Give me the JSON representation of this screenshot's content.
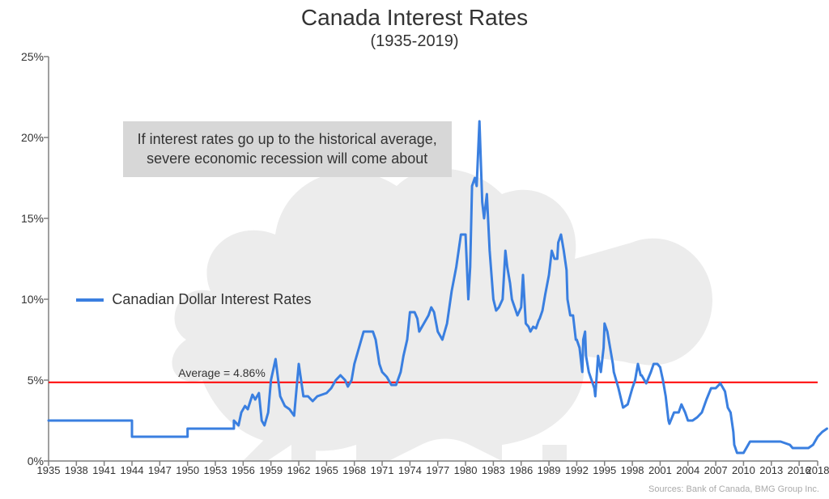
{
  "chart": {
    "type": "line",
    "title": "Canada Interest Rates",
    "subtitle": "(1935-2019)",
    "title_fontsize": 28,
    "subtitle_fontsize": 20,
    "background_color": "#ffffff",
    "watermark_color": "#ececec",
    "axis_color": "#808080",
    "tick_label_color": "#333333",
    "title_color": "#333333",
    "xlim": [
      1935,
      2018
    ],
    "ylim": [
      0,
      25
    ],
    "ytick_step": 5,
    "ytick_labels": [
      "0%",
      "5%",
      "10%",
      "15%",
      "20%",
      "25%"
    ],
    "xticks": [
      1935,
      1938,
      1941,
      1944,
      1947,
      1950,
      1953,
      1956,
      1959,
      1962,
      1965,
      1968,
      1971,
      1974,
      1977,
      1980,
      1983,
      1986,
      1989,
      1992,
      1995,
      1998,
      2001,
      2004,
      2007,
      2010,
      2013,
      2016,
      2018
    ],
    "legend": {
      "label": "Canadian Dollar Interest Rates",
      "color": "#3a7fe0",
      "fontsize": 18,
      "y_position": 10
    },
    "average_line": {
      "label": "Average = 4.86%",
      "value": 4.86,
      "color": "#ff0000",
      "line_width": 2,
      "label_fontsize": 14
    },
    "annotation": {
      "text": "If interest rates go up to the historical average,\nsevere economic recession will come about",
      "bg": "#d7d7d7",
      "fontsize": 18,
      "x_year": 1943,
      "y_top_value": 21
    },
    "series": {
      "color": "#3a7fe0",
      "line_width": 3,
      "points": [
        [
          1935,
          2.5
        ],
        [
          1944,
          2.5
        ],
        [
          1944,
          1.5
        ],
        [
          1950,
          1.5
        ],
        [
          1950,
          2.0
        ],
        [
          1955,
          2.0
        ],
        [
          1955,
          2.5
        ],
        [
          1955.5,
          2.2
        ],
        [
          1955.8,
          3.0
        ],
        [
          1956.2,
          3.4
        ],
        [
          1956.5,
          3.2
        ],
        [
          1957,
          4.1
        ],
        [
          1957.3,
          3.8
        ],
        [
          1957.7,
          4.2
        ],
        [
          1958,
          2.5
        ],
        [
          1958.3,
          2.2
        ],
        [
          1958.7,
          3.0
        ],
        [
          1959,
          5.0
        ],
        [
          1959.5,
          6.3
        ],
        [
          1960,
          4.0
        ],
        [
          1960.5,
          3.4
        ],
        [
          1961,
          3.2
        ],
        [
          1961.5,
          2.8
        ],
        [
          1962,
          6.0
        ],
        [
          1962.5,
          4.0
        ],
        [
          1963,
          4.0
        ],
        [
          1963.5,
          3.7
        ],
        [
          1964,
          4.0
        ],
        [
          1965,
          4.2
        ],
        [
          1965.5,
          4.5
        ],
        [
          1966,
          5.0
        ],
        [
          1966.5,
          5.3
        ],
        [
          1967,
          5.0
        ],
        [
          1967.3,
          4.6
        ],
        [
          1967.7,
          5.0
        ],
        [
          1968,
          6.0
        ],
        [
          1968.5,
          7.0
        ],
        [
          1969,
          8.0
        ],
        [
          1969.5,
          8.0
        ],
        [
          1970,
          8.0
        ],
        [
          1970.3,
          7.5
        ],
        [
          1970.7,
          6.0
        ],
        [
          1971,
          5.5
        ],
        [
          1971.5,
          5.2
        ],
        [
          1972,
          4.7
        ],
        [
          1972.5,
          4.7
        ],
        [
          1973,
          5.5
        ],
        [
          1973.3,
          6.5
        ],
        [
          1973.7,
          7.5
        ],
        [
          1974,
          9.2
        ],
        [
          1974.5,
          9.2
        ],
        [
          1974.8,
          8.8
        ],
        [
          1975,
          8.0
        ],
        [
          1975.5,
          8.5
        ],
        [
          1976,
          9.0
        ],
        [
          1976.3,
          9.5
        ],
        [
          1976.6,
          9.2
        ],
        [
          1977,
          8.0
        ],
        [
          1977.5,
          7.5
        ],
        [
          1978,
          8.5
        ],
        [
          1978.5,
          10.5
        ],
        [
          1979,
          12.0
        ],
        [
          1979.5,
          14.0
        ],
        [
          1980,
          14.0
        ],
        [
          1980.3,
          10.0
        ],
        [
          1980.5,
          12.0
        ],
        [
          1980.7,
          17.0
        ],
        [
          1981,
          17.5
        ],
        [
          1981.2,
          17.0
        ],
        [
          1981.5,
          21.0
        ],
        [
          1981.8,
          16.0
        ],
        [
          1982,
          15.0
        ],
        [
          1982.3,
          16.5
        ],
        [
          1982.6,
          13.0
        ],
        [
          1983,
          10.0
        ],
        [
          1983.3,
          9.3
        ],
        [
          1983.6,
          9.5
        ],
        [
          1984,
          10.0
        ],
        [
          1984.3,
          13.0
        ],
        [
          1984.5,
          12.0
        ],
        [
          1984.8,
          11.0
        ],
        [
          1985,
          10.0
        ],
        [
          1985.3,
          9.5
        ],
        [
          1985.6,
          9.0
        ],
        [
          1986,
          9.5
        ],
        [
          1986.2,
          11.5
        ],
        [
          1986.5,
          8.5
        ],
        [
          1986.8,
          8.3
        ],
        [
          1987,
          8.0
        ],
        [
          1987.3,
          8.3
        ],
        [
          1987.6,
          8.2
        ],
        [
          1987.9,
          8.7
        ],
        [
          1988,
          8.8
        ],
        [
          1988.3,
          9.3
        ],
        [
          1988.6,
          10.3
        ],
        [
          1989,
          11.5
        ],
        [
          1989.3,
          13.0
        ],
        [
          1989.6,
          12.5
        ],
        [
          1989.9,
          12.5
        ],
        [
          1990,
          13.5
        ],
        [
          1990.3,
          14.0
        ],
        [
          1990.6,
          13.0
        ],
        [
          1990.9,
          11.8
        ],
        [
          1991,
          10.0
        ],
        [
          1991.3,
          9.0
        ],
        [
          1991.6,
          9.0
        ],
        [
          1991.9,
          7.5
        ],
        [
          1992,
          7.5
        ],
        [
          1992.3,
          7.0
        ],
        [
          1992.6,
          5.5
        ],
        [
          1992.7,
          7.5
        ],
        [
          1992.9,
          8.0
        ],
        [
          1993,
          6.5
        ],
        [
          1993.3,
          5.5
        ],
        [
          1993.6,
          5.0
        ],
        [
          1993.9,
          4.5
        ],
        [
          1994,
          4.0
        ],
        [
          1994.3,
          6.5
        ],
        [
          1994.6,
          5.5
        ],
        [
          1994.9,
          7.0
        ],
        [
          1995,
          8.5
        ],
        [
          1995.3,
          8.0
        ],
        [
          1995.6,
          7.0
        ],
        [
          1995.9,
          6.0
        ],
        [
          1996,
          5.5
        ],
        [
          1996.5,
          4.5
        ],
        [
          1997,
          3.3
        ],
        [
          1997.5,
          3.5
        ],
        [
          1998,
          4.5
        ],
        [
          1998.3,
          5.0
        ],
        [
          1998.6,
          6.0
        ],
        [
          1998.9,
          5.3
        ],
        [
          1999,
          5.3
        ],
        [
          1999.5,
          4.8
        ],
        [
          2000,
          5.5
        ],
        [
          2000.3,
          6.0
        ],
        [
          2000.7,
          6.0
        ],
        [
          2001,
          5.8
        ],
        [
          2001.3,
          5.0
        ],
        [
          2001.6,
          4.0
        ],
        [
          2001.9,
          2.5
        ],
        [
          2002,
          2.3
        ],
        [
          2002.5,
          3.0
        ],
        [
          2003,
          3.0
        ],
        [
          2003.3,
          3.5
        ],
        [
          2003.7,
          3.0
        ],
        [
          2004,
          2.5
        ],
        [
          2004.5,
          2.5
        ],
        [
          2005,
          2.7
        ],
        [
          2005.5,
          3.0
        ],
        [
          2006,
          3.8
        ],
        [
          2006.5,
          4.5
        ],
        [
          2007,
          4.5
        ],
        [
          2007.5,
          4.8
        ],
        [
          2007.8,
          4.5
        ],
        [
          2008,
          4.3
        ],
        [
          2008.3,
          3.3
        ],
        [
          2008.6,
          3.0
        ],
        [
          2008.9,
          1.8
        ],
        [
          2009,
          1.0
        ],
        [
          2009.3,
          0.5
        ],
        [
          2009.7,
          0.5
        ],
        [
          2010,
          0.5
        ],
        [
          2010.3,
          0.8
        ],
        [
          2010.7,
          1.2
        ],
        [
          2011,
          1.2
        ],
        [
          2012,
          1.2
        ],
        [
          2013,
          1.2
        ],
        [
          2014,
          1.2
        ],
        [
          2015,
          1.0
        ],
        [
          2015.3,
          0.8
        ],
        [
          2015.7,
          0.8
        ],
        [
          2016,
          0.8
        ],
        [
          2017,
          0.8
        ],
        [
          2017.5,
          1.0
        ],
        [
          2018,
          1.5
        ],
        [
          2018.5,
          1.8
        ],
        [
          2019,
          2.0
        ]
      ]
    },
    "source": "Sources: Bank of Canada, BMG Group Inc."
  }
}
